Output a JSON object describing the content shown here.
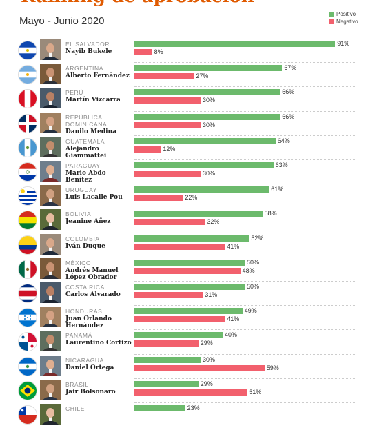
{
  "subtitle": "Mayo - Junio 2020",
  "colors": {
    "positive": "#6cba6c",
    "negative": "#f2606d"
  },
  "chart_data": {
    "type": "bar",
    "orientation": "horizontal",
    "value_unit": "%",
    "xlim": [
      0,
      100
    ],
    "legend": [
      "Positivo",
      "Negativo"
    ],
    "legend_position": "top-right",
    "series": [
      {
        "name": "Positivo",
        "values": [
          91,
          67,
          66,
          66,
          64,
          63,
          61,
          58,
          52,
          50,
          50,
          49,
          40,
          30,
          29,
          23
        ]
      },
      {
        "name": "Negativo",
        "values": [
          8,
          27,
          30,
          30,
          12,
          30,
          22,
          32,
          41,
          48,
          31,
          41,
          29,
          59,
          51,
          null
        ]
      }
    ],
    "rows": [
      {
        "country": "EL SALVADOR",
        "president": "Nayib Bukele",
        "flag": "el-salvador-flag-icon"
      },
      {
        "country": "ARGENTINA",
        "president": "Alberto Fernández",
        "flag": "argentina-flag-icon"
      },
      {
        "country": "PERÚ",
        "president": "Martín Vizcarra",
        "flag": "peru-flag-icon"
      },
      {
        "country": "REPÚBLICA DOMINICANA",
        "president": "Danilo Medina",
        "flag": "dominican-republic-flag-icon"
      },
      {
        "country": "GUATEMALA",
        "president": "Alejandro Giammattei",
        "flag": "guatemala-flag-icon"
      },
      {
        "country": "PARAGUAY",
        "president": "Mario Abdo Benítez",
        "flag": "paraguay-flag-icon"
      },
      {
        "country": "URUGUAY",
        "president": "Luis Lacalle Pou",
        "flag": "uruguay-flag-icon"
      },
      {
        "country": "BOLIVIA",
        "president": "Jeanine Añez",
        "flag": "bolivia-flag-icon"
      },
      {
        "country": "COLOMBIA",
        "president": "Iván Duque",
        "flag": "colombia-flag-icon"
      },
      {
        "country": "MÉXICO",
        "president": "Andrés Manuel López Obrador",
        "flag": "mexico-flag-icon"
      },
      {
        "country": "COSTA RICA",
        "president": "Carlos Alvarado",
        "flag": "costa-rica-flag-icon"
      },
      {
        "country": "HONDURAS",
        "president": "Juan Orlando Hernández",
        "flag": "honduras-flag-icon"
      },
      {
        "country": "PANAMÁ",
        "president": "Laurentino Cortizo",
        "flag": "panama-flag-icon"
      },
      {
        "country": "NICARAGUA",
        "president": "Daniel Ortega",
        "flag": "nicaragua-flag-icon"
      },
      {
        "country": "BRASIL",
        "president": "Jair Bolsonaro",
        "flag": "brazil-flag-icon"
      },
      {
        "country": "CHILE",
        "president": "",
        "flag": "chile-flag-icon"
      }
    ]
  }
}
